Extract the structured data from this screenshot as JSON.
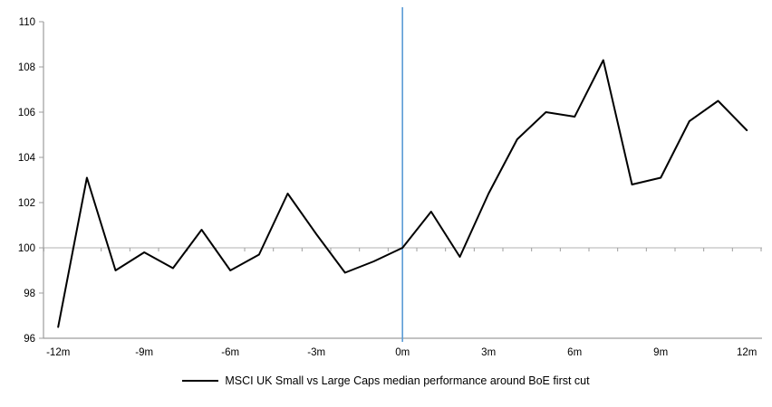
{
  "chart_data": {
    "type": "line",
    "title": "",
    "xlabel": "",
    "ylabel": "",
    "x_months": [
      -12,
      -11,
      -10,
      -9,
      -8,
      -7,
      -6,
      -5,
      -4,
      -3,
      -2,
      -1,
      0,
      1,
      2,
      3,
      4,
      5,
      6,
      7,
      8,
      9,
      10,
      11,
      12
    ],
    "series": [
      {
        "name": "MSCI UK Small vs Large Caps median performance around BoE first cut",
        "color": "#000000",
        "values": [
          96.5,
          103.1,
          99.0,
          99.8,
          99.1,
          100.8,
          99.0,
          99.7,
          102.4,
          100.6,
          98.9,
          99.4,
          100.0,
          101.6,
          99.6,
          102.4,
          104.8,
          106.0,
          105.8,
          108.3,
          102.8,
          103.1,
          105.6,
          106.5,
          105.2
        ]
      }
    ],
    "ylim": [
      96,
      110
    ],
    "y_ticks": [
      96,
      98,
      100,
      102,
      104,
      106,
      108,
      110
    ],
    "x_tick_labels": [
      {
        "month": -12,
        "label": "-12m"
      },
      {
        "month": -9,
        "label": "-9m"
      },
      {
        "month": -6,
        "label": "-6m"
      },
      {
        "month": -3,
        "label": "-3m"
      },
      {
        "month": 0,
        "label": "0m"
      },
      {
        "month": 3,
        "label": "3m"
      },
      {
        "month": 6,
        "label": "6m"
      },
      {
        "month": 9,
        "label": "9m"
      },
      {
        "month": 12,
        "label": "12m"
      }
    ],
    "baseline_value": 100,
    "event_line": {
      "x_month": 0,
      "color": "#5B9BD5"
    },
    "grid": "single horizontal line at 100",
    "legend_position": "bottom"
  },
  "colors": {
    "series_line": "#000000",
    "event_line": "#5B9BD5",
    "baseline": "#c0c0c0",
    "axis": "#9d9d9d",
    "tick_text": "#000000",
    "background": "#ffffff"
  },
  "legend": {
    "label": "MSCI UK Small vs Large Caps median performance around BoE first cut"
  }
}
